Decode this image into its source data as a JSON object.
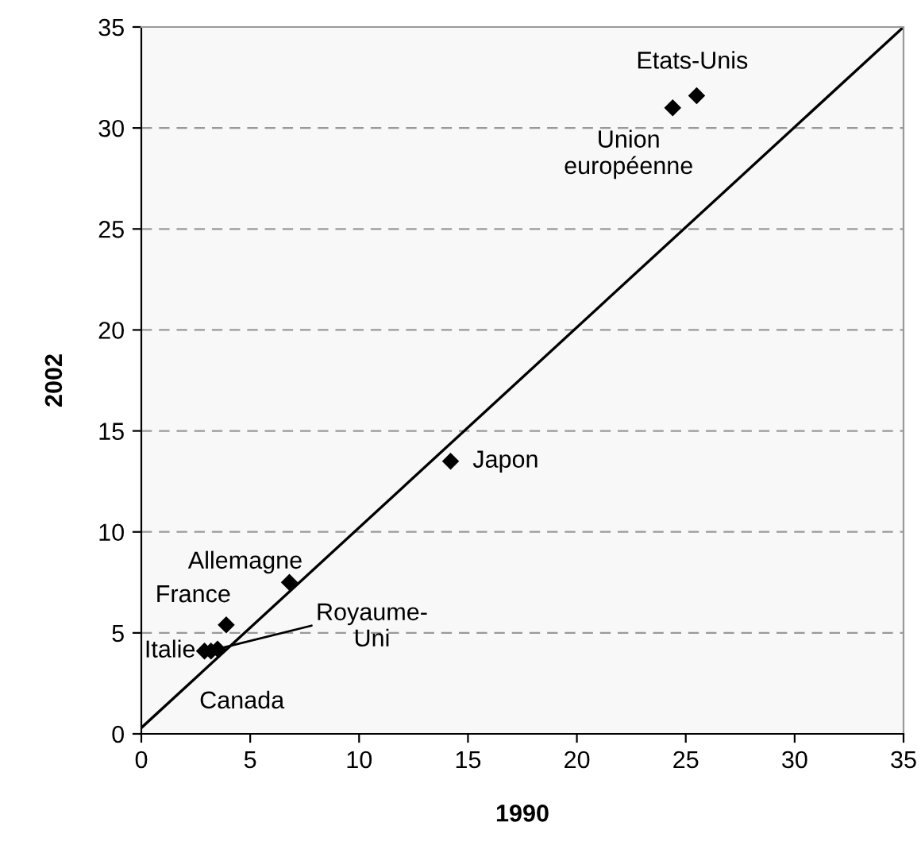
{
  "chart_data": {
    "type": "scatter",
    "xlabel": "1990",
    "ylabel": "2002",
    "xlim": [
      0,
      35
    ],
    "ylim": [
      0,
      35
    ],
    "xticks": [
      0,
      5,
      10,
      15,
      20,
      25,
      30,
      35
    ],
    "yticks": [
      0,
      5,
      10,
      15,
      20,
      25,
      30,
      35
    ],
    "grid": "y",
    "series": [
      {
        "color": "#000000",
        "marker": "diamond",
        "x": [
          25.5,
          24.4,
          14.2,
          6.8,
          3.9,
          2.9,
          3.2,
          3.5
        ],
        "values": [
          31.6,
          31.0,
          13.5,
          7.5,
          5.4,
          4.1,
          4.1,
          4.2
        ]
      },
      {
        "type": "line",
        "color": "#000000",
        "x": [
          0,
          35
        ],
        "values": [
          0.3,
          35.0
        ],
        "line_style": "solid"
      }
    ],
    "annotations": [
      {
        "text": "Etats-Unis",
        "x": 25.5,
        "y": 31.6
      },
      {
        "text": "Union\neuropéenne",
        "x": 24.4,
        "y": 31.0
      },
      {
        "text": "Japon",
        "x": 14.2,
        "y": 13.5
      },
      {
        "text": "Allemagne",
        "x": 6.8,
        "y": 7.5
      },
      {
        "text": "France",
        "x": 3.9,
        "y": 5.4
      },
      {
        "text": "Italie",
        "x": 2.9,
        "y": 4.1
      },
      {
        "text": "Canada",
        "x": 3.2,
        "y": 4.1
      },
      {
        "text": "Royaume-\nUni",
        "x": 3.5,
        "y": 4.2
      }
    ]
  }
}
